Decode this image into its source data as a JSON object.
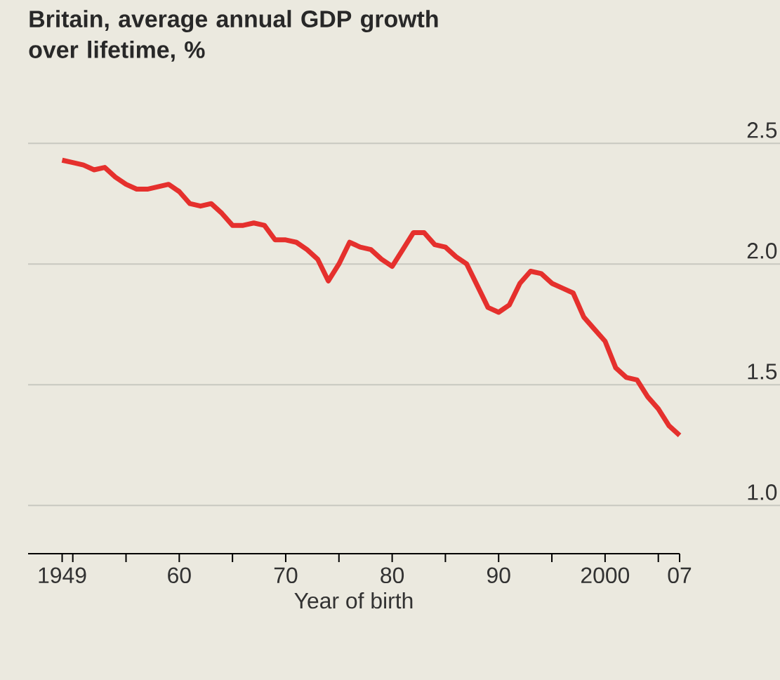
{
  "chart_data": {
    "type": "line",
    "title": "Britain, average annual GDP growth over lifetime, %",
    "xlabel": "Year of birth",
    "x": [
      1949,
      1950,
      1951,
      1952,
      1953,
      1954,
      1955,
      1956,
      1957,
      1958,
      1959,
      1960,
      1961,
      1962,
      1963,
      1964,
      1965,
      1966,
      1967,
      1968,
      1969,
      1970,
      1971,
      1972,
      1973,
      1974,
      1975,
      1976,
      1977,
      1978,
      1979,
      1980,
      1981,
      1982,
      1983,
      1984,
      1985,
      1986,
      1987,
      1988,
      1989,
      1990,
      1991,
      1992,
      1993,
      1994,
      1995,
      1996,
      1997,
      1998,
      1999,
      2000,
      2001,
      2002,
      2003,
      2004,
      2005,
      2006,
      2007
    ],
    "series": [
      {
        "color": "#e5302d",
        "values": [
          2.43,
          2.42,
          2.41,
          2.39,
          2.4,
          2.36,
          2.33,
          2.31,
          2.31,
          2.32,
          2.33,
          2.3,
          2.25,
          2.24,
          2.25,
          2.21,
          2.16,
          2.16,
          2.17,
          2.16,
          2.1,
          2.1,
          2.09,
          2.06,
          2.02,
          1.93,
          2.0,
          2.09,
          2.07,
          2.06,
          2.02,
          1.99,
          2.06,
          2.13,
          2.13,
          2.08,
          2.07,
          2.03,
          2.0,
          1.91,
          1.82,
          1.8,
          1.83,
          1.92,
          1.97,
          1.96,
          1.92,
          1.9,
          1.88,
          1.78,
          1.73,
          1.68,
          1.57,
          1.53,
          1.52,
          1.45,
          1.4,
          1.33,
          1.29
        ]
      }
    ],
    "xlim": [
      1945.8,
      2007
    ],
    "ylim": [
      0.8,
      2.5
    ],
    "xticks": [
      {
        "value": 1949,
        "label": "1949"
      },
      {
        "value": 1950,
        "label": null
      },
      {
        "value": 1955,
        "label": null
      },
      {
        "value": 1960,
        "label": "60"
      },
      {
        "value": 1965,
        "label": null
      },
      {
        "value": 1970,
        "label": "70"
      },
      {
        "value": 1975,
        "label": null
      },
      {
        "value": 1980,
        "label": "80"
      },
      {
        "value": 1985,
        "label": null
      },
      {
        "value": 1990,
        "label": "90"
      },
      {
        "value": 1995,
        "label": null
      },
      {
        "value": 2000,
        "label": "2000"
      },
      {
        "value": 2005,
        "label": null
      },
      {
        "value": 2007,
        "label": "07"
      }
    ],
    "yticks": [
      {
        "value": 1.0,
        "label": "1.0"
      },
      {
        "value": 1.5,
        "label": "1.5"
      },
      {
        "value": 2.0,
        "label": "2.0"
      },
      {
        "value": 2.5,
        "label": "2.5"
      }
    ],
    "grid": "y",
    "marker": "none",
    "line_style": "solid"
  }
}
